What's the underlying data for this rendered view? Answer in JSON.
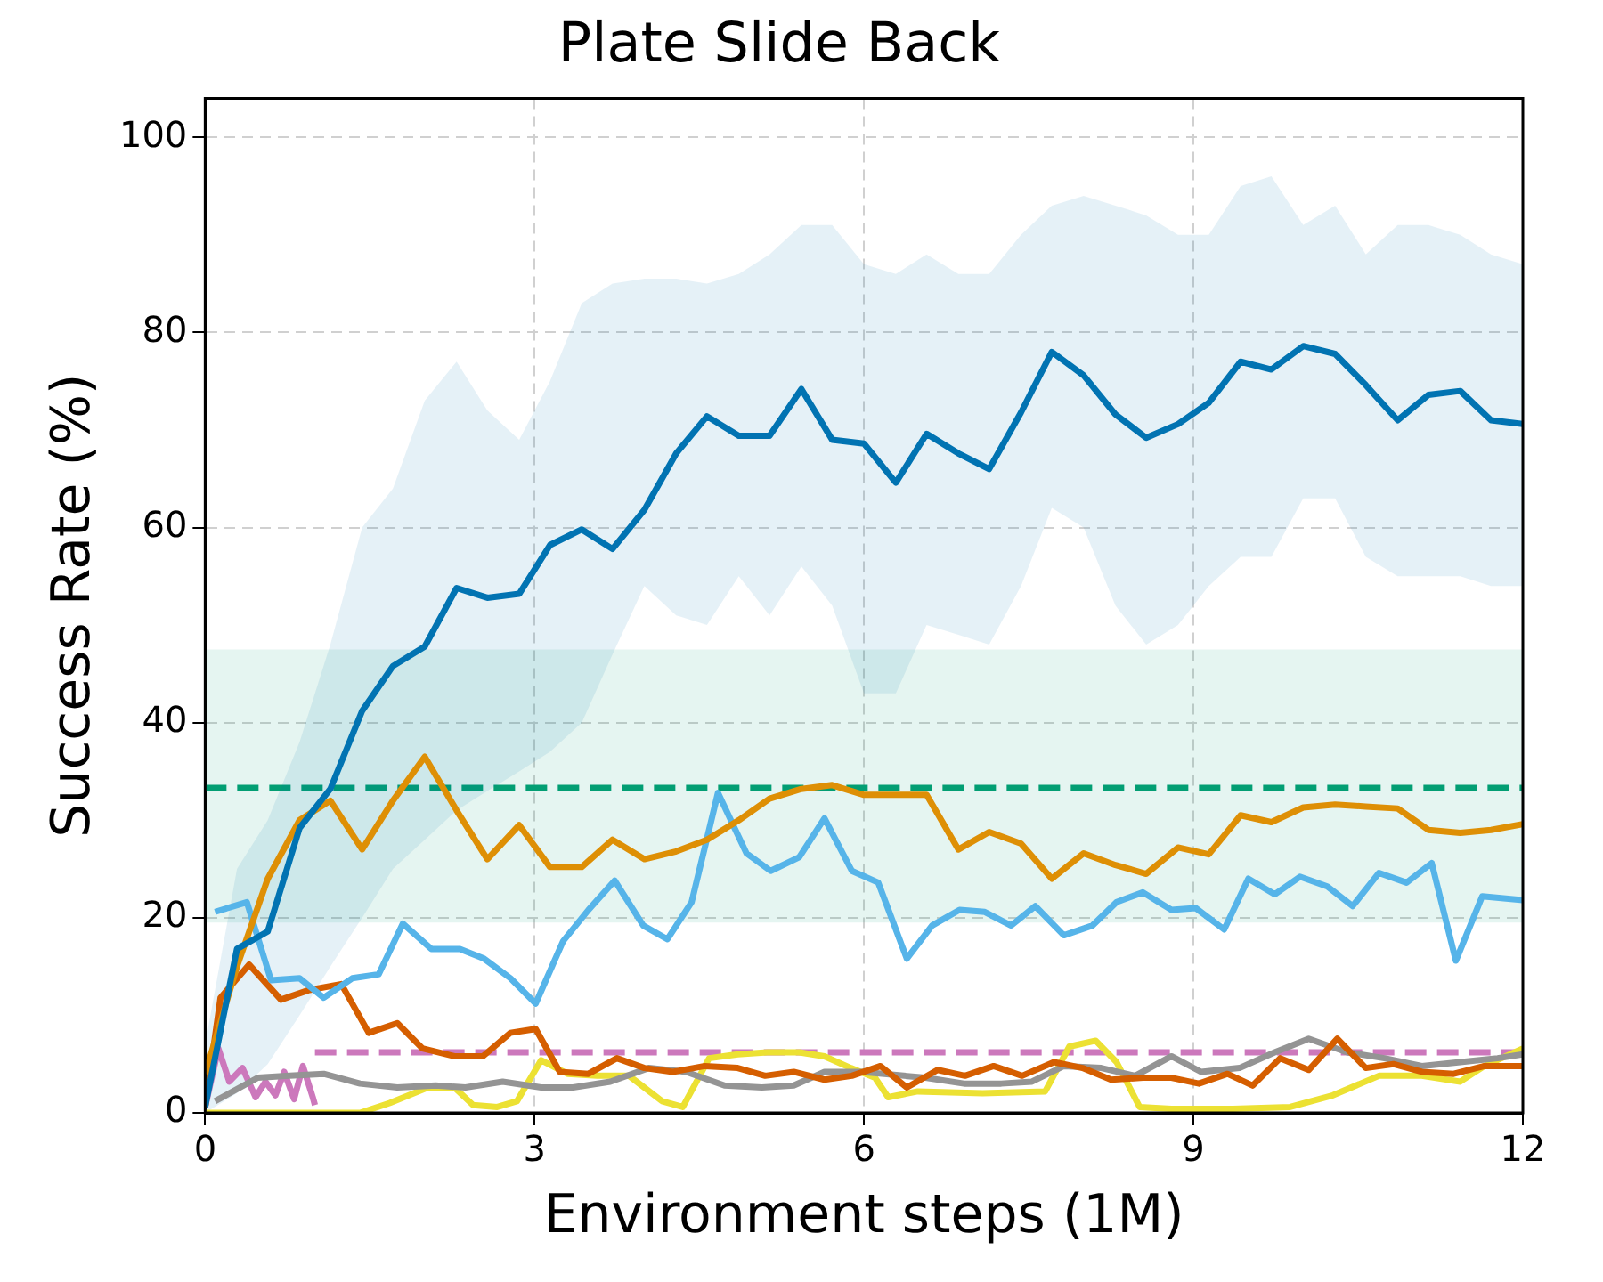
{
  "chart_data": {
    "type": "line",
    "title": "Plate Slide Back",
    "xlabel": "Environment steps (1M)",
    "ylabel": "Success Rate (%)",
    "x": [
      0,
      0.29,
      0.57,
      0.86,
      1.14,
      1.43,
      1.71,
      2,
      2.29,
      2.57,
      2.86,
      3.14,
      3.43,
      3.71,
      4,
      4.29,
      4.57,
      4.86,
      5.14,
      5.43,
      5.71,
      6,
      6.29,
      6.57,
      6.86,
      7.14,
      7.43,
      7.71,
      8,
      8.29,
      8.57,
      8.86,
      9.14,
      9.43,
      9.71,
      10,
      10.29,
      10.57,
      10.86,
      11.14,
      11.43,
      11.71,
      12
    ],
    "series": [
      {
        "color": "#0173b2",
        "values": [
          0.6,
          16.8,
          18.6,
          29.2,
          33.2,
          41.2,
          45.8,
          47.8,
          53.8,
          52.8,
          53.2,
          58.2,
          59.8,
          57.8,
          61.8,
          67.6,
          71.4,
          69.4,
          69.4,
          74.2,
          69,
          68.6,
          64.6,
          69.6,
          67.6,
          66,
          71.8,
          78,
          75.6,
          71.6,
          69.2,
          70.6,
          72.8,
          77,
          76.2,
          78.6,
          77.8,
          74.6,
          71,
          73.6,
          74,
          71,
          70.6
        ],
        "lower": [
          0,
          2,
          5,
          10,
          15,
          20,
          25,
          28,
          31,
          33,
          35,
          37,
          40,
          47,
          54,
          51,
          50,
          55,
          51,
          56,
          52,
          43,
          43,
          50,
          49,
          48,
          54,
          62,
          60,
          52,
          48,
          50,
          54,
          57,
          57,
          63,
          63,
          57,
          55,
          55,
          55,
          54,
          54
        ],
        "upper": [
          7,
          25,
          30,
          38,
          48,
          60,
          64,
          73,
          77,
          72,
          69,
          75,
          83,
          85,
          85.5,
          85.5,
          85,
          86,
          88,
          91,
          91,
          87,
          86,
          88,
          86,
          86,
          90,
          93,
          94,
          93,
          92,
          90,
          90,
          95,
          96,
          91,
          93,
          88,
          91,
          91,
          90,
          88,
          87
        ]
      },
      {
        "color": "#de8f05",
        "values": [
          4,
          15,
          24,
          30,
          32,
          27,
          32,
          36.5,
          31,
          26,
          29.5,
          25.2,
          25.2,
          28,
          26,
          26.8,
          28,
          30,
          32.2,
          33.2,
          33.6,
          32.6,
          32.6,
          32.6,
          27,
          28.8,
          27.6,
          24,
          26.6,
          25.4,
          24.5,
          27.2,
          26.5,
          30.5,
          29.8,
          31.3,
          31.6,
          31.4,
          31.2,
          29,
          28.7,
          29,
          29.6
        ]
      },
      {
        "color": "#56b4e9",
        "x": [
          0.09,
          0.38,
          0.6,
          0.86,
          1.08,
          1.34,
          1.58,
          1.8,
          2.06,
          2.32,
          2.54,
          2.78,
          3.01,
          3.26,
          3.49,
          3.73,
          3.99,
          4.21,
          4.43,
          4.67,
          4.93,
          5.15,
          5.41,
          5.64,
          5.89,
          6.13,
          6.39,
          6.62,
          6.87,
          7.1,
          7.34,
          7.56,
          7.82,
          8.08,
          8.3,
          8.54,
          8.8,
          9.02,
          9.28,
          9.5,
          9.74,
          9.97,
          10.22,
          10.45,
          10.69,
          10.94,
          11.17,
          11.39,
          11.63,
          12
        ],
        "values": [
          20.6,
          21.6,
          13.6,
          13.8,
          11.8,
          13.8,
          14.2,
          19.4,
          16.8,
          16.8,
          15.8,
          13.8,
          11.2,
          17.6,
          20.8,
          23.8,
          19.2,
          17.8,
          21.6,
          32.8,
          26.6,
          24.8,
          26.2,
          30.2,
          24.8,
          23.6,
          15.8,
          19.2,
          20.8,
          20.6,
          19.2,
          21.2,
          18.2,
          19.2,
          21.6,
          22.6,
          20.8,
          21,
          18.8,
          24,
          22.4,
          24.2,
          23.2,
          21.2,
          24.6,
          23.6,
          25.6,
          15.6,
          22.2,
          21.8
        ]
      },
      {
        "color": "#d55e00",
        "x": [
          0,
          0.14,
          0.4,
          0.69,
          0.95,
          1.24,
          1.49,
          1.75,
          1.98,
          2.27,
          2.53,
          2.78,
          3.01,
          3.23,
          3.49,
          3.75,
          4,
          4.26,
          4.55,
          4.85,
          5.1,
          5.36,
          5.64,
          5.89,
          6.15,
          6.39,
          6.67,
          6.92,
          7.18,
          7.44,
          7.73,
          7.99,
          8.25,
          8.54,
          8.8,
          9.05,
          9.31,
          9.54,
          9.79,
          10.05,
          10.31,
          10.57,
          10.82,
          11.08,
          11.37,
          11.65,
          12
        ],
        "values": [
          0.6,
          11.8,
          15.2,
          11.6,
          12.6,
          13.2,
          8.2,
          9.2,
          6.6,
          5.8,
          5.8,
          8.2,
          8.6,
          4.2,
          4,
          5.6,
          4.6,
          4.2,
          4.8,
          4.6,
          3.8,
          4.2,
          3.4,
          3.8,
          4.8,
          2.6,
          4.4,
          3.8,
          4.8,
          3.8,
          5.2,
          4.6,
          3.4,
          3.6,
          3.6,
          3,
          4,
          2.8,
          5.6,
          4.4,
          7.6,
          4.6,
          5,
          4.2,
          4,
          4.8,
          4.8
        ]
      },
      {
        "color": "#949494",
        "x": [
          0.09,
          0.48,
          0.77,
          1.08,
          1.41,
          1.75,
          2.1,
          2.37,
          2.71,
          3.06,
          3.35,
          3.69,
          4.04,
          4.38,
          4.73,
          5.07,
          5.36,
          5.64,
          5.98,
          6.56,
          6.91,
          7.25,
          7.53,
          7.82,
          8.16,
          8.47,
          8.8,
          9.07,
          9.42,
          9.74,
          10.05,
          10.4,
          10.74,
          11.08,
          11.43,
          11.77,
          12
        ],
        "values": [
          1.2,
          3.6,
          3.8,
          4,
          3,
          2.6,
          2.8,
          2.6,
          3.2,
          2.6,
          2.6,
          3.2,
          4.6,
          4.2,
          2.8,
          2.6,
          2.8,
          4.2,
          4.2,
          3.6,
          3,
          3,
          3.2,
          4.8,
          4.6,
          3.8,
          5.8,
          4.2,
          4.6,
          6.2,
          7.6,
          6.2,
          5.6,
          4.8,
          5.2,
          5.6,
          6
        ]
      },
      {
        "color": "#ece133",
        "x": [
          0,
          1.41,
          1.68,
          2.03,
          2.27,
          2.44,
          2.66,
          2.84,
          3.06,
          3.3,
          3.57,
          3.86,
          4.16,
          4.35,
          4.59,
          4.85,
          5.12,
          5.41,
          5.64,
          5.88,
          6.1,
          6.22,
          6.49,
          7.08,
          7.65,
          7.87,
          8.11,
          8.3,
          8.51,
          8.8,
          9.36,
          9.88,
          10.27,
          10.69,
          11.08,
          11.43,
          11.65,
          12
        ],
        "values": [
          0,
          0,
          1,
          2.6,
          2.6,
          0.8,
          0.6,
          1.2,
          5.4,
          4,
          3.8,
          3.8,
          1.2,
          0.6,
          5.6,
          6,
          6.2,
          6.2,
          5.8,
          4.6,
          3.6,
          1.6,
          2.2,
          2,
          2.2,
          6.8,
          7.4,
          5.2,
          0.6,
          0.4,
          0.4,
          0.6,
          1.8,
          3.8,
          3.8,
          3.2,
          4.8,
          6.6
        ]
      },
      {
        "color": "#cc78bc",
        "x": [
          0,
          0.12,
          0.22,
          0.34,
          0.46,
          0.55,
          0.64,
          0.72,
          0.81,
          0.89,
          0.98,
          1
        ],
        "values": [
          0.6,
          6.6,
          3.2,
          4.6,
          1.6,
          3.2,
          1.8,
          4.2,
          1.4,
          4.8,
          1.6,
          0.8
        ]
      },
      {
        "color": "#cc78bc",
        "line_style": "dashed",
        "x": [
          1,
          12
        ],
        "values": [
          6.2,
          6.2
        ]
      }
    ],
    "ref_lines": [
      {
        "axis": "y",
        "value": 33.3,
        "color": "#029e73",
        "line_style": "dashed"
      }
    ],
    "bands": [
      {
        "axis": "y",
        "from": 19.5,
        "to": 47.5,
        "color": "#029e73"
      }
    ],
    "xlim": [
      0,
      12
    ],
    "xticks": [
      0,
      3,
      6,
      9,
      12
    ],
    "ylim": [
      0,
      104
    ],
    "yticks": [
      0,
      20,
      40,
      60,
      80,
      100
    ],
    "grid": true,
    "legend": false,
    "marker": "none",
    "line_style": "solid"
  }
}
